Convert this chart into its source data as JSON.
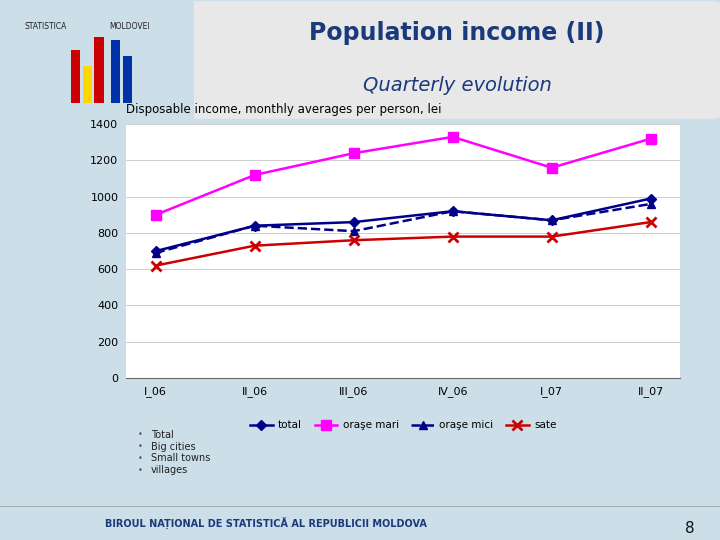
{
  "title_line1": "Population income (II)",
  "title_line2": "Quarterly evolution",
  "chart_title": "Disposable income, monthly averages per person, lei",
  "x_labels": [
    "I_06",
    "II_06",
    "III_06",
    "IV_06",
    "I_07",
    "II_07"
  ],
  "total": [
    700,
    840,
    860,
    920,
    870,
    990
  ],
  "orase_mari": [
    900,
    1120,
    1240,
    1330,
    1160,
    1320
  ],
  "orase_mici": [
    690,
    840,
    810,
    920,
    870,
    960
  ],
  "sate": [
    620,
    730,
    760,
    780,
    780,
    860
  ],
  "ylim": [
    0,
    1400
  ],
  "yticks": [
    0,
    200,
    400,
    600,
    800,
    1000,
    1200,
    1400
  ],
  "legend_labels": [
    "total",
    "oraşe mari",
    "oraşe mici",
    "sate"
  ],
  "legend_labels2": [
    "Total",
    "Big cities",
    "Small towns",
    "villages"
  ],
  "color_total": "#00008B",
  "color_orase_mari": "#FF00FF",
  "color_orase_mici": "#00008B",
  "color_sate": "#CC0000",
  "bg_outer": "#ccdee8",
  "title_color": "#1a3a7c",
  "chart_title_color": "#000000",
  "footer_text": "BIROUL NAȚIONAL DE STATISTICĂ AL REPUBLICII MOLDOVA",
  "slide_number": "8"
}
